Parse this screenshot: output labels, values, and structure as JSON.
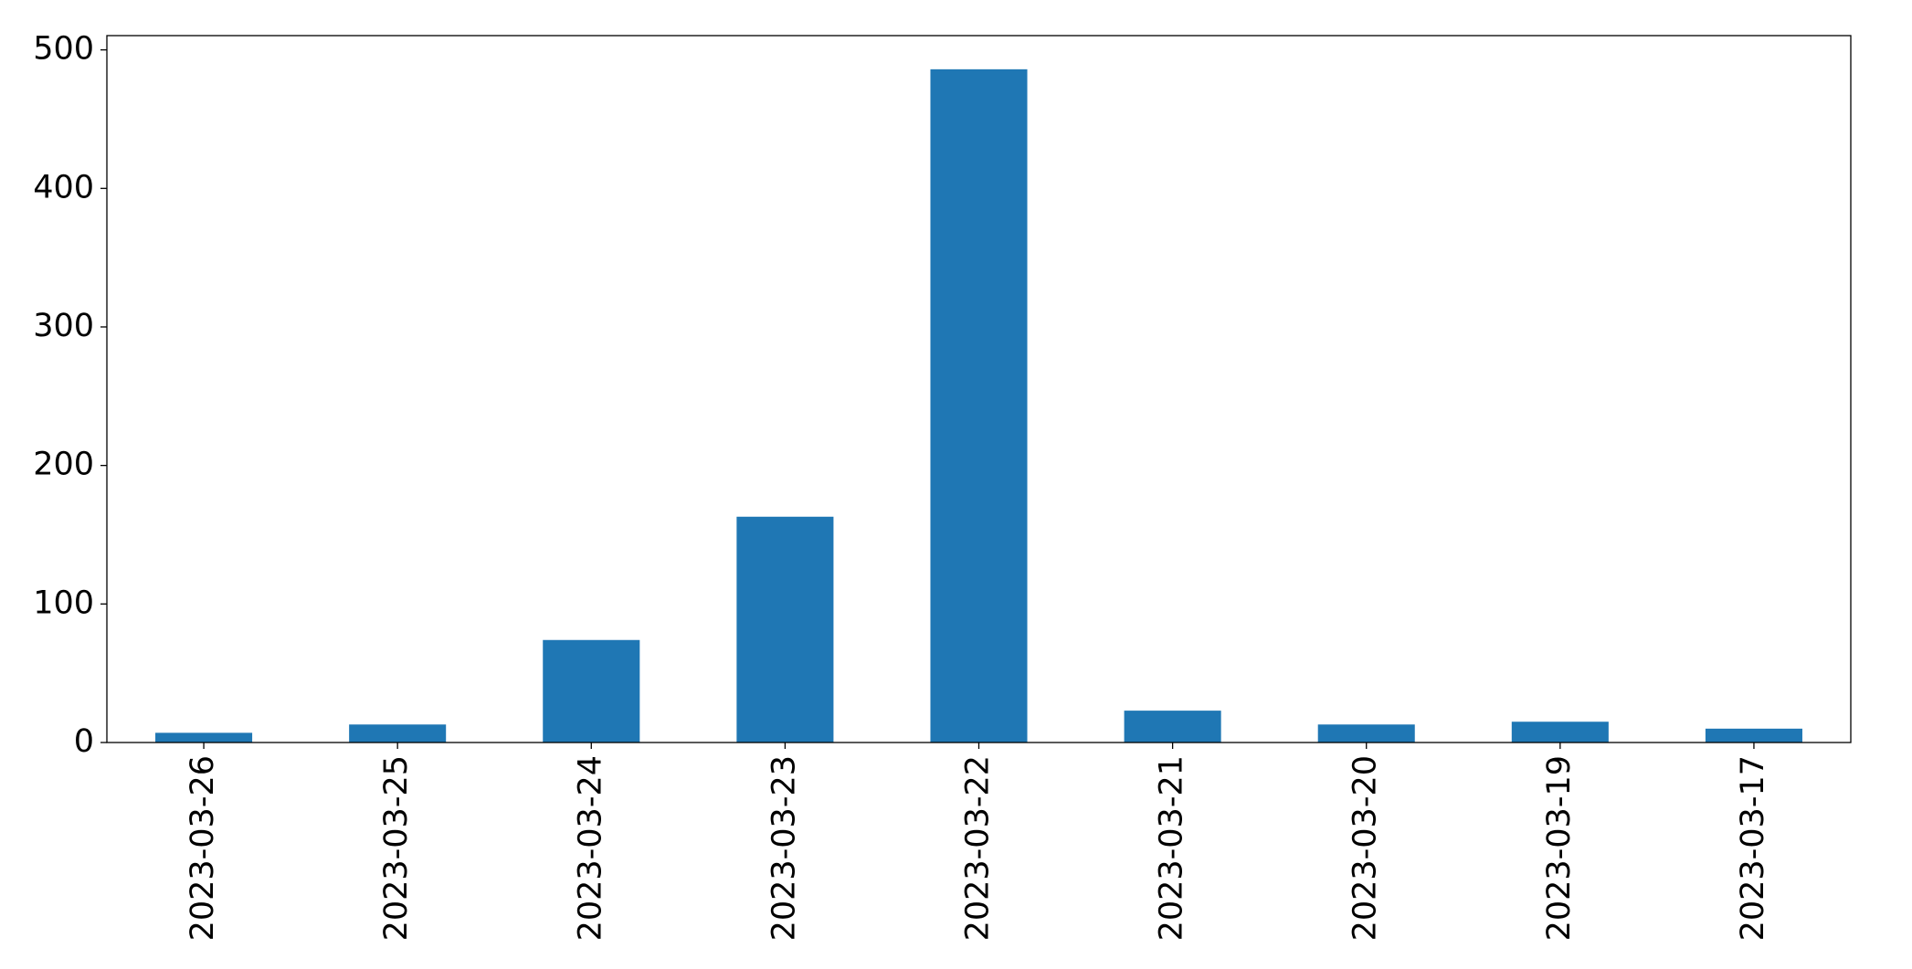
{
  "chart_data": {
    "type": "bar",
    "categories": [
      "2023-03-26",
      "2023-03-25",
      "2023-03-24",
      "2023-03-23",
      "2023-03-22",
      "2023-03-21",
      "2023-03-20",
      "2023-03-19",
      "2023-03-17"
    ],
    "values": [
      7,
      13,
      74,
      163,
      486,
      23,
      13,
      15,
      10
    ],
    "color": "#1f77b4",
    "ylim": [
      0,
      510.3
    ],
    "yticks": [
      0,
      100,
      200,
      300,
      400,
      500
    ],
    "grid": false
  }
}
